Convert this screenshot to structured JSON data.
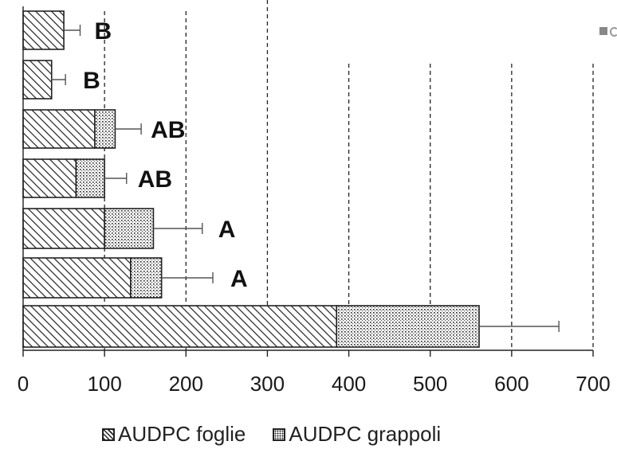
{
  "chart_data": {
    "type": "bar",
    "orientation": "horizontal",
    "stacked": true,
    "xlim": [
      0,
      700
    ],
    "x_ticks": [
      "0",
      "100",
      "200",
      "300",
      "400",
      "500",
      "600",
      "700"
    ],
    "grid": "vertical dashed",
    "legend_position": "bottom",
    "series": [
      {
        "name": "AUDPC foglie",
        "values": [
          50,
          35,
          88,
          65,
          100,
          132,
          385
        ]
      },
      {
        "name": "AUDPC grappoli",
        "values": [
          0,
          0,
          25,
          35,
          60,
          38,
          175
        ]
      }
    ],
    "error_upper": [
      70,
      52,
      145,
      127,
      220,
      233,
      658
    ],
    "significance_labels": [
      "B",
      "B",
      "AB",
      "AB",
      "A",
      "A",
      ""
    ],
    "colors": {
      "axis": "#222222",
      "grid": "#222222",
      "bar_edge": "#222222",
      "text": "#1a1a1a"
    }
  }
}
